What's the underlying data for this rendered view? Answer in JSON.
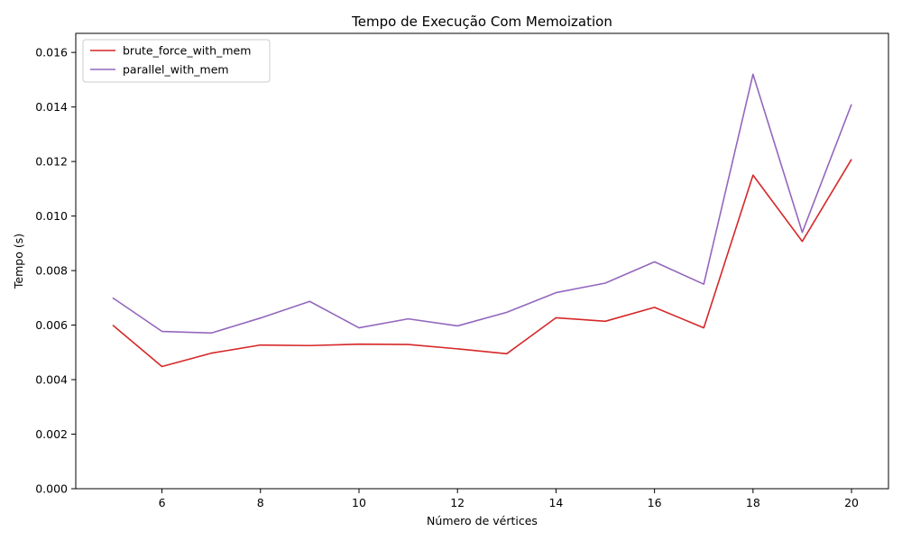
{
  "chart_data": {
    "type": "line",
    "title": "Tempo de Execução Com Memoization",
    "xlabel": "Número de vértices",
    "ylabel": "Tempo (s)",
    "x": [
      5,
      6,
      7,
      8,
      9,
      10,
      11,
      12,
      13,
      14,
      15,
      16,
      17,
      18,
      19,
      20
    ],
    "xlim": [
      4.25,
      20.75
    ],
    "ylim": [
      0,
      0.0167
    ],
    "xticks": [
      6,
      8,
      10,
      12,
      14,
      16,
      18,
      20
    ],
    "yticks": [
      "0.000",
      "0.002",
      "0.004",
      "0.006",
      "0.008",
      "0.010",
      "0.012",
      "0.014",
      "0.016"
    ],
    "grid": false,
    "legend_position": "top-left",
    "series": [
      {
        "name": "brute_force_with_mem",
        "color": "#d62728",
        "values": [
          0.006,
          0.00448,
          0.00497,
          0.00527,
          0.00525,
          0.0053,
          0.00529,
          0.00513,
          0.00495,
          0.00627,
          0.00614,
          0.00665,
          0.0059,
          0.0115,
          0.00907,
          0.01208
        ]
      },
      {
        "name": "parallel_with_mem",
        "color": "#9467bd",
        "values": [
          0.007,
          0.00577,
          0.00571,
          0.00626,
          0.00687,
          0.0059,
          0.00623,
          0.00597,
          0.00647,
          0.00719,
          0.00754,
          0.00832,
          0.0075,
          0.0152,
          0.0094,
          0.0141
        ]
      }
    ]
  }
}
